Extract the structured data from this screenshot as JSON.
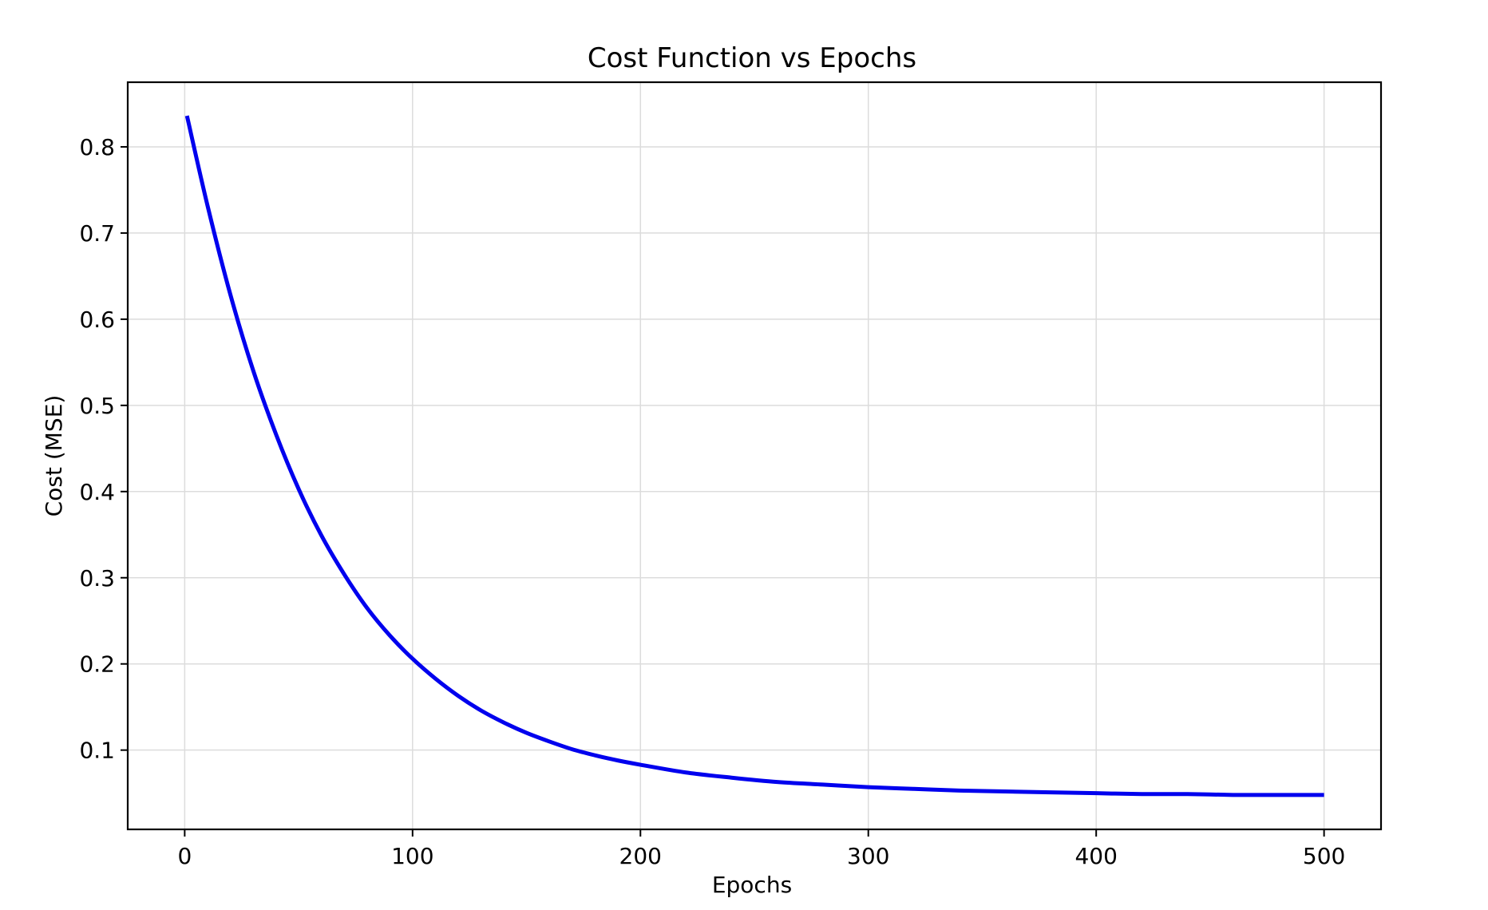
{
  "chart_data": {
    "type": "line",
    "title": "Cost Function vs Epochs",
    "xlabel": "Epochs",
    "ylabel": "Cost (MSE)",
    "xlim": [
      -25,
      525
    ],
    "ylim": [
      0.008,
      0.875
    ],
    "xticks": [
      0,
      100,
      200,
      300,
      400,
      500
    ],
    "xtick_labels": [
      "0",
      "100",
      "200",
      "300",
      "400",
      "500"
    ],
    "yticks": [
      0.1,
      0.2,
      0.3,
      0.4,
      0.5,
      0.6,
      0.7,
      0.8
    ],
    "ytick_labels": [
      "0.1",
      "0.2",
      "0.3",
      "0.4",
      "0.5",
      "0.6",
      "0.7",
      "0.8"
    ],
    "grid": true,
    "series": [
      {
        "color": "#0000ee",
        "x": [
          1,
          10,
          20,
          30,
          40,
          50,
          60,
          70,
          80,
          90,
          100,
          110,
          120,
          130,
          140,
          150,
          160,
          170,
          180,
          190,
          200,
          220,
          240,
          260,
          280,
          300,
          320,
          340,
          360,
          380,
          400,
          420,
          440,
          460,
          480,
          500
        ],
        "y": [
          0.836,
          0.732,
          0.629,
          0.541,
          0.467,
          0.403,
          0.349,
          0.304,
          0.265,
          0.233,
          0.206,
          0.183,
          0.163,
          0.146,
          0.132,
          0.12,
          0.11,
          0.101,
          0.094,
          0.088,
          0.083,
          0.074,
          0.068,
          0.063,
          0.06,
          0.057,
          0.055,
          0.053,
          0.052,
          0.051,
          0.05,
          0.049,
          0.049,
          0.048,
          0.048,
          0.048
        ]
      }
    ]
  }
}
